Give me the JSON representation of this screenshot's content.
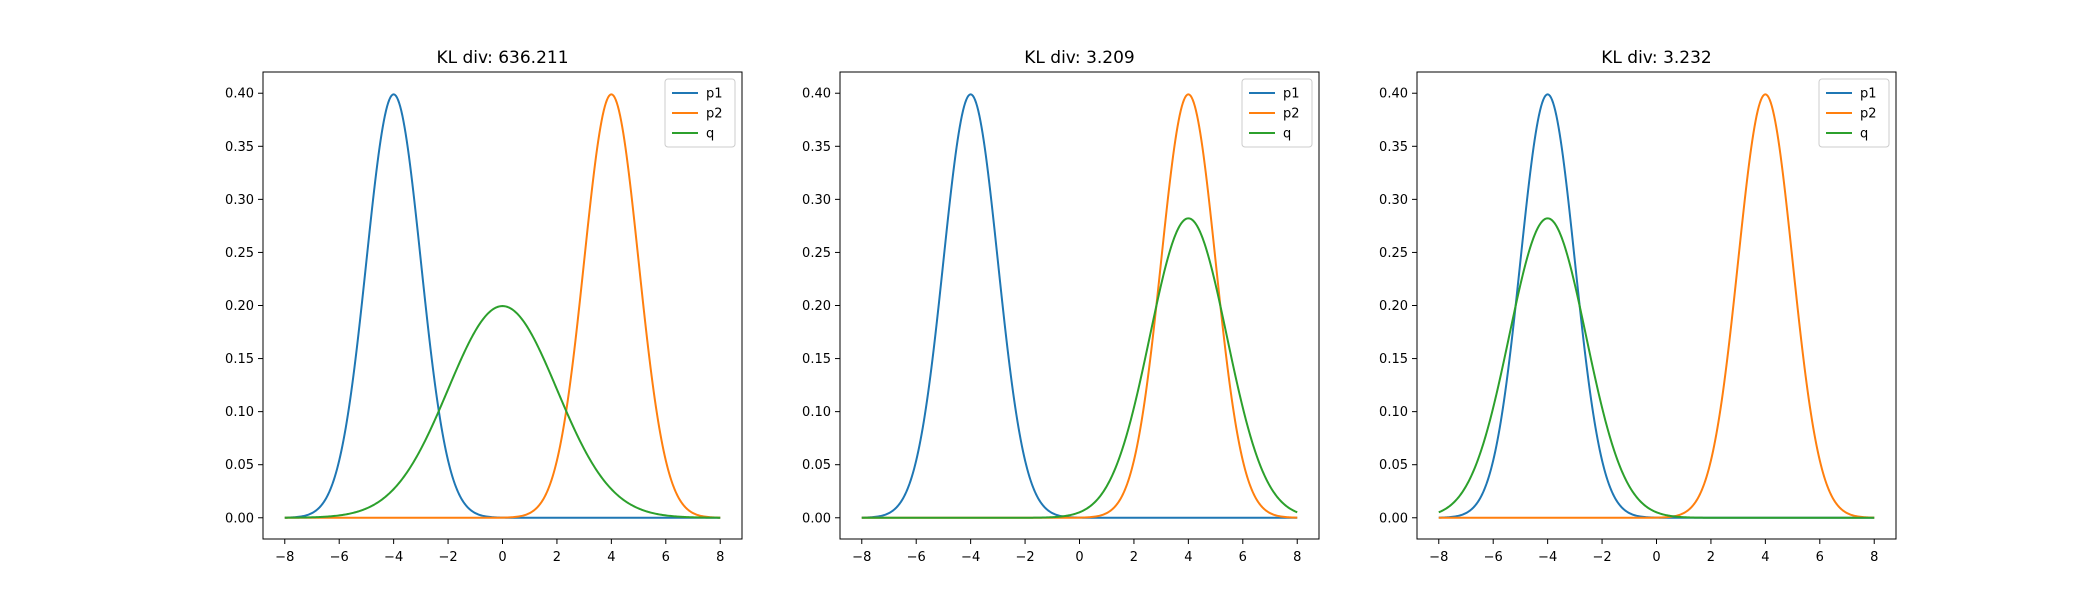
{
  "colors": {
    "p1": "#1f77b4",
    "p2": "#ff7f0e",
    "q": "#2ca02c"
  },
  "chart_data": [
    {
      "type": "line",
      "title": "KL div: 636.211",
      "xlim": [
        -8.8,
        8.8
      ],
      "ylim": [
        -0.02,
        0.42
      ],
      "xticks": [
        -8,
        -6,
        -4,
        -2,
        0,
        2,
        4,
        6,
        8
      ],
      "yticks": [
        0.0,
        0.05,
        0.1,
        0.15,
        0.2,
        0.25,
        0.3,
        0.35,
        0.4
      ],
      "ytick_labels": [
        "0.00",
        "0.05",
        "0.10",
        "0.15",
        "0.20",
        "0.25",
        "0.30",
        "0.35",
        "0.40"
      ],
      "legend": "top-right",
      "series": [
        {
          "name": "p1",
          "color": "#1f77b4",
          "mean": -4,
          "std": 1,
          "x_range": [
            -8,
            8
          ]
        },
        {
          "name": "p2",
          "color": "#ff7f0e",
          "mean": 4,
          "std": 1,
          "x_range": [
            -8,
            8
          ]
        },
        {
          "name": "q",
          "color": "#2ca02c",
          "mean": 0,
          "std": 2,
          "x_range": [
            -8,
            8
          ]
        }
      ]
    },
    {
      "type": "line",
      "title": "KL div: 3.209",
      "xlim": [
        -8.8,
        8.8
      ],
      "ylim": [
        -0.02,
        0.42
      ],
      "xticks": [
        -8,
        -6,
        -4,
        -2,
        0,
        2,
        4,
        6,
        8
      ],
      "yticks": [
        0.0,
        0.05,
        0.1,
        0.15,
        0.2,
        0.25,
        0.3,
        0.35,
        0.4
      ],
      "ytick_labels": [
        "0.00",
        "0.05",
        "0.10",
        "0.15",
        "0.20",
        "0.25",
        "0.30",
        "0.35",
        "0.40"
      ],
      "legend": "top-right",
      "series": [
        {
          "name": "p1",
          "color": "#1f77b4",
          "mean": -4,
          "std": 1,
          "x_range": [
            -8,
            8
          ]
        },
        {
          "name": "p2",
          "color": "#ff7f0e",
          "mean": 4,
          "std": 1,
          "x_range": [
            -8,
            8
          ]
        },
        {
          "name": "q",
          "color": "#2ca02c",
          "mean": 4,
          "std": 1.414,
          "x_range": [
            -8,
            8
          ]
        }
      ]
    },
    {
      "type": "line",
      "title": "KL div: 3.232",
      "xlim": [
        -8.8,
        8.8
      ],
      "ylim": [
        -0.02,
        0.42
      ],
      "xticks": [
        -8,
        -6,
        -4,
        -2,
        0,
        2,
        4,
        6,
        8
      ],
      "yticks": [
        0.0,
        0.05,
        0.1,
        0.15,
        0.2,
        0.25,
        0.3,
        0.35,
        0.4
      ],
      "ytick_labels": [
        "0.00",
        "0.05",
        "0.10",
        "0.15",
        "0.20",
        "0.25",
        "0.30",
        "0.35",
        "0.40"
      ],
      "legend": "top-right",
      "series": [
        {
          "name": "p1",
          "color": "#1f77b4",
          "mean": -4,
          "std": 1,
          "x_range": [
            -8,
            8
          ]
        },
        {
          "name": "p2",
          "color": "#ff7f0e",
          "mean": 4,
          "std": 1,
          "x_range": [
            -8,
            8
          ]
        },
        {
          "name": "q",
          "color": "#2ca02c",
          "mean": -4,
          "std": 1.414,
          "x_range": [
            -8,
            8
          ]
        }
      ]
    }
  ]
}
